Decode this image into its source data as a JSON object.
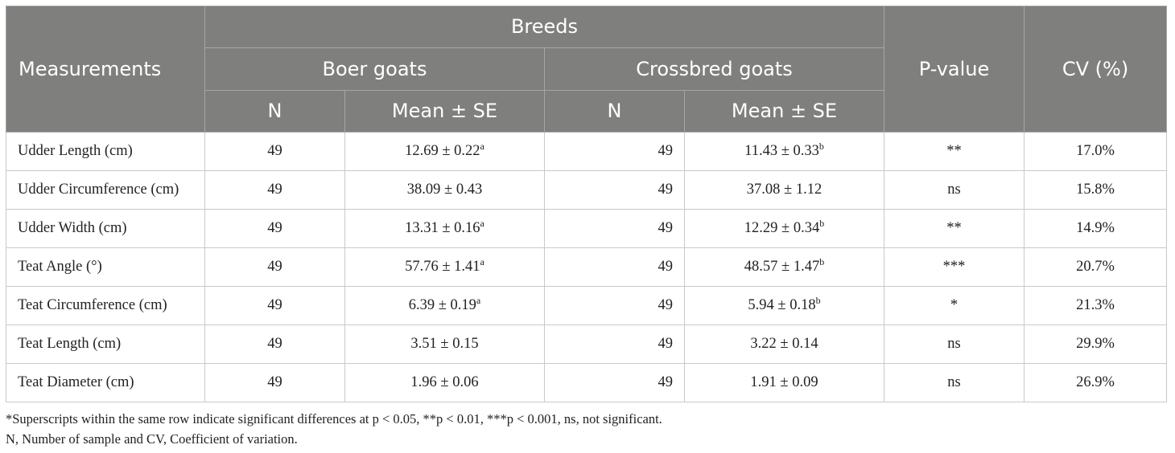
{
  "table": {
    "headers": {
      "measurements": "Measurements",
      "breeds": "Breeds",
      "boer": "Boer goats",
      "crossbred": "Crossbred goats",
      "pvalue": "P-value",
      "cv": "CV (%)",
      "n": "N",
      "mean_se": "Mean ± SE"
    },
    "rows": [
      {
        "label": "Udder Length (cm)",
        "boer_n": "49",
        "boer_mean": "12.69 ± 0.22",
        "boer_sup": "a",
        "cross_n": "49",
        "cross_mean": "11.43 ± 0.33",
        "cross_sup": "b",
        "p": "**",
        "cv": "17.0%"
      },
      {
        "label": "Udder Circumference (cm)",
        "boer_n": "49",
        "boer_mean": "38.09 ± 0.43",
        "boer_sup": "",
        "cross_n": "49",
        "cross_mean": "37.08 ± 1.12",
        "cross_sup": "",
        "p": "ns",
        "cv": "15.8%"
      },
      {
        "label": "Udder Width (cm)",
        "boer_n": "49",
        "boer_mean": "13.31 ± 0.16",
        "boer_sup": "a",
        "cross_n": "49",
        "cross_mean": "12.29 ± 0.34",
        "cross_sup": "b",
        "p": "**",
        "cv": "14.9%"
      },
      {
        "label": "Teat Angle (°)",
        "boer_n": "49",
        "boer_mean": "57.76 ± 1.41",
        "boer_sup": "a",
        "cross_n": "49",
        "cross_mean": "48.57 ± 1.47",
        "cross_sup": "b",
        "p": "***",
        "cv": "20.7%"
      },
      {
        "label": "Teat Circumference (cm)",
        "boer_n": "49",
        "boer_mean": "6.39 ± 0.19",
        "boer_sup": "a",
        "cross_n": "49",
        "cross_mean": "5.94 ± 0.18",
        "cross_sup": "b",
        "p": "*",
        "cv": "21.3%"
      },
      {
        "label": "Teat Length (cm)",
        "boer_n": "49",
        "boer_mean": "3.51 ± 0.15",
        "boer_sup": "",
        "cross_n": "49",
        "cross_mean": "3.22 ± 0.14",
        "cross_sup": "",
        "p": "ns",
        "cv": "29.9%"
      },
      {
        "label": "Teat Diameter (cm)",
        "boer_n": "49",
        "boer_mean": "1.96 ± 0.06",
        "boer_sup": "",
        "cross_n": "49",
        "cross_mean": "1.91 ± 0.09",
        "cross_sup": "",
        "p": "ns",
        "cv": "26.9%"
      }
    ]
  },
  "notes": {
    "line1": "*Superscripts within the same row indicate significant differences at p < 0.05, **p < 0.01, ***p < 0.001, ns, not significant.",
    "line2": "N, Number of sample and CV, Coefficient of variation."
  }
}
